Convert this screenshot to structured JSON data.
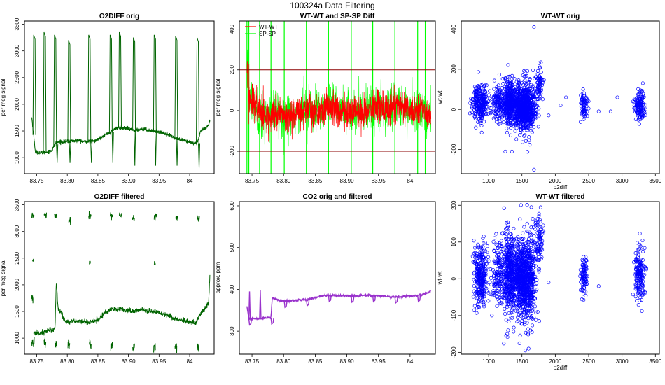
{
  "figure": {
    "title": "100324a   Data Filtering"
  },
  "chart_data": [
    {
      "id": "p1",
      "type": "line",
      "title": "O2DIFF orig",
      "xlabel": "",
      "ylabel": "per meg signal",
      "xlim": [
        83.73,
        84.04
      ],
      "ylim": [
        700,
        3560
      ],
      "xticks": [
        83.75,
        83.8,
        83.85,
        83.9,
        83.95,
        84.0
      ],
      "yticks": [
        1000,
        1500,
        2000,
        2500,
        3000,
        3500
      ],
      "color": "#006400",
      "series": [
        {
          "name": "o2diff",
          "base": [
            [
              83.742,
              1750
            ],
            [
              83.748,
              1100
            ],
            [
              83.76,
              1090
            ],
            [
              83.77,
              1120
            ],
            [
              83.775,
              1140
            ],
            [
              83.781,
              1270
            ],
            [
              83.788,
              1300
            ],
            [
              83.8,
              1300
            ],
            [
              83.815,
              1320
            ],
            [
              83.83,
              1300
            ],
            [
              83.845,
              1310
            ],
            [
              83.85,
              1340
            ],
            [
              83.858,
              1410
            ],
            [
              83.87,
              1470
            ],
            [
              83.88,
              1560
            ],
            [
              83.895,
              1550
            ],
            [
              83.91,
              1510
            ],
            [
              83.925,
              1540
            ],
            [
              83.935,
              1510
            ],
            [
              83.943,
              1500
            ],
            [
              83.952,
              1480
            ],
            [
              83.96,
              1450
            ],
            [
              83.968,
              1420
            ],
            [
              83.976,
              1370
            ],
            [
              83.985,
              1330
            ],
            [
              83.995,
              1300
            ],
            [
              84.005,
              1280
            ],
            [
              84.012,
              1270
            ],
            [
              84.018,
              1500
            ],
            [
              84.025,
              1550
            ],
            [
              84.03,
              1600
            ],
            [
              84.033,
              1680
            ]
          ],
          "spikes_high": [
            [
              83.745,
              3300
            ],
            [
              83.762,
              3350
            ],
            [
              83.779,
              3300
            ],
            [
              83.802,
              3200
            ],
            [
              83.835,
              3300
            ],
            [
              83.87,
              3300
            ],
            [
              83.885,
              3350
            ],
            [
              83.908,
              3250
            ],
            [
              83.942,
              3300
            ],
            [
              83.977,
              3280
            ],
            [
              84.012,
              3250
            ]
          ],
          "spikes_low": [
            [
              83.78,
              900
            ],
            [
              83.801,
              900
            ],
            [
              83.836,
              900
            ],
            [
              83.871,
              900
            ],
            [
              83.907,
              850
            ],
            [
              83.941,
              850
            ],
            [
              83.976,
              850
            ],
            [
              84.012,
              800
            ]
          ]
        }
      ]
    },
    {
      "id": "p2",
      "type": "line",
      "title": "WT-WT and SP-SP Diff",
      "xlabel": "",
      "ylabel": "per meg signal",
      "xlim": [
        83.73,
        84.04
      ],
      "ylim": [
        -310,
        440
      ],
      "xticks": [
        83.75,
        83.8,
        83.85,
        83.9,
        83.95,
        84.0
      ],
      "yticks": [
        -200,
        0,
        200,
        400
      ],
      "hlines": [
        200,
        -200
      ],
      "legend": [
        "WT-WT",
        "SP-SP"
      ],
      "series": [
        {
          "name": "WT-WT",
          "color": "#ff0000",
          "base": [
            [
              83.742,
              200
            ],
            [
              83.745,
              80
            ],
            [
              83.75,
              40
            ],
            [
              83.755,
              30
            ],
            [
              83.76,
              5
            ],
            [
              83.765,
              -20
            ],
            [
              83.77,
              -30
            ],
            [
              83.78,
              -20
            ],
            [
              83.79,
              -5
            ],
            [
              83.8,
              -20
            ],
            [
              83.81,
              -30
            ],
            [
              83.82,
              -15
            ],
            [
              83.83,
              0
            ],
            [
              83.84,
              10
            ],
            [
              83.85,
              -5
            ],
            [
              83.86,
              -10
            ],
            [
              83.865,
              10
            ],
            [
              83.87,
              30
            ],
            [
              83.88,
              20
            ],
            [
              83.89,
              0
            ],
            [
              83.9,
              -10
            ],
            [
              83.91,
              -5
            ],
            [
              83.92,
              -15
            ],
            [
              83.93,
              0
            ],
            [
              83.94,
              10
            ],
            [
              83.95,
              20
            ],
            [
              83.96,
              0
            ],
            [
              83.97,
              10
            ],
            [
              83.98,
              30
            ],
            [
              83.99,
              20
            ],
            [
              84.0,
              0
            ],
            [
              84.01,
              -10
            ],
            [
              84.02,
              0
            ],
            [
              84.028,
              -20
            ],
            [
              84.033,
              -30
            ]
          ],
          "noise": 40
        },
        {
          "name": "SP-SP",
          "color": "#00ff00",
          "spikes": [
            83.742,
            83.745,
            83.762,
            83.78,
            83.801,
            83.836,
            83.871,
            83.907,
            83.941,
            83.976,
            84.012,
            84.024
          ]
        }
      ]
    },
    {
      "id": "p3",
      "type": "scatter",
      "title": "WT-WT orig",
      "xlabel": "o2diff",
      "ylabel": "wt-wt",
      "xlim": [
        590,
        3560
      ],
      "ylim": [
        -320,
        440
      ],
      "xticks": [
        1000,
        1500,
        2000,
        2500,
        3000,
        3500
      ],
      "yticks": [
        -200,
        0,
        200,
        400
      ],
      "color": "#0000ff",
      "clusters": [
        {
          "cx": 880,
          "cy": 30,
          "sx": 60,
          "sy": 45,
          "n": 260
        },
        {
          "cx": 1150,
          "cy": 30,
          "sx": 50,
          "sy": 45,
          "n": 140
        },
        {
          "cx": 1300,
          "cy": 40,
          "sx": 35,
          "sy": 55,
          "n": 260
        },
        {
          "cx": 1480,
          "cy": 10,
          "sx": 100,
          "sy": 55,
          "n": 650
        },
        {
          "cx": 1580,
          "cy": 10,
          "sx": 70,
          "sy": 65,
          "n": 300
        },
        {
          "cx": 1760,
          "cy": 120,
          "sx": 25,
          "sy": 40,
          "n": 70
        },
        {
          "cx": 2430,
          "cy": 20,
          "sx": 25,
          "sy": 35,
          "n": 70
        },
        {
          "cx": 3260,
          "cy": 20,
          "sx": 40,
          "sy": 35,
          "n": 140
        }
      ],
      "outliers": [
        [
          1680,
          410
        ],
        [
          1680,
          -300
        ],
        [
          1250,
          -210
        ],
        [
          1350,
          -210
        ],
        [
          1760,
          230
        ],
        [
          2080,
          20
        ],
        [
          2160,
          60
        ],
        [
          2500,
          40
        ],
        [
          2650,
          -10
        ],
        [
          2830,
          -10
        ],
        [
          2930,
          60
        ],
        [
          1900,
          -30
        ],
        [
          720,
          -20
        ]
      ]
    },
    {
      "id": "p4",
      "type": "line",
      "title": "O2DIFF filtered",
      "xlabel": "",
      "ylabel": "per meg signal",
      "xlim": [
        83.73,
        84.04
      ],
      "ylim": [
        700,
        3560
      ],
      "xticks": [
        83.75,
        83.8,
        83.85,
        83.9,
        83.95,
        84.0
      ],
      "yticks": [
        1000,
        1500,
        2000,
        2500,
        3000,
        3500
      ],
      "color": "#006400",
      "segments": [
        {
          "x": 83.742,
          "y": 3280,
          "len": 0.004,
          "noise": 60
        },
        {
          "x": 83.762,
          "y": 3300,
          "len": 0.004,
          "noise": 60
        },
        {
          "x": 83.779,
          "y": 3300,
          "len": 0.004,
          "noise": 60
        },
        {
          "x": 83.802,
          "y": 3200,
          "len": 0.004,
          "noise": 60
        },
        {
          "x": 83.835,
          "y": 3300,
          "len": 0.004,
          "noise": 60
        },
        {
          "x": 83.87,
          "y": 3300,
          "len": 0.004,
          "noise": 60
        },
        {
          "x": 83.885,
          "y": 3320,
          "len": 0.004,
          "noise": 60
        },
        {
          "x": 83.906,
          "y": 3250,
          "len": 0.004,
          "noise": 60
        },
        {
          "x": 83.942,
          "y": 3300,
          "len": 0.004,
          "noise": 60
        },
        {
          "x": 83.977,
          "y": 3260,
          "len": 0.004,
          "noise": 60
        },
        {
          "x": 84.012,
          "y": 3230,
          "len": 0.004,
          "noise": 60
        },
        {
          "x": 83.743,
          "y": 2450,
          "len": 0.002,
          "noise": 30
        },
        {
          "x": 83.836,
          "y": 2420,
          "len": 0.002,
          "noise": 30
        },
        {
          "x": 83.942,
          "y": 2400,
          "len": 0.002,
          "noise": 30
        },
        {
          "x": 83.742,
          "y": 1750,
          "len": 0.002,
          "noise": 80
        },
        {
          "x": 83.742,
          "y": 900,
          "len": 0.004,
          "noise": 80
        },
        {
          "x": 83.762,
          "y": 900,
          "len": 0.003,
          "noise": 80
        },
        {
          "x": 83.78,
          "y": 880,
          "len": 0.003,
          "noise": 80
        },
        {
          "x": 83.801,
          "y": 860,
          "len": 0.003,
          "noise": 80
        },
        {
          "x": 83.836,
          "y": 880,
          "len": 0.003,
          "noise": 80
        },
        {
          "x": 83.871,
          "y": 860,
          "len": 0.003,
          "noise": 80
        },
        {
          "x": 83.907,
          "y": 840,
          "len": 0.003,
          "noise": 80
        },
        {
          "x": 83.941,
          "y": 840,
          "len": 0.003,
          "noise": 80
        },
        {
          "x": 83.976,
          "y": 820,
          "len": 0.003,
          "noise": 80
        },
        {
          "x": 84.012,
          "y": 820,
          "len": 0.003,
          "noise": 80
        }
      ],
      "base": [
        [
          83.745,
          1100
        ],
        [
          83.755,
          1090
        ],
        [
          83.765,
          1130
        ],
        [
          83.775,
          1150
        ],
        [
          83.78,
          1200
        ],
        [
          83.782,
          2050
        ],
        [
          83.785,
          1550
        ],
        [
          83.79,
          1480
        ],
        [
          83.795,
          1350
        ],
        [
          83.8,
          1300
        ],
        [
          83.815,
          1320
        ],
        [
          83.83,
          1300
        ],
        [
          83.845,
          1320
        ],
        [
          83.855,
          1400
        ],
        [
          83.865,
          1500
        ],
        [
          83.875,
          1560
        ],
        [
          83.89,
          1530
        ],
        [
          83.905,
          1510
        ],
        [
          83.92,
          1530
        ],
        [
          83.935,
          1510
        ],
        [
          83.95,
          1480
        ],
        [
          83.965,
          1430
        ],
        [
          83.98,
          1350
        ],
        [
          83.995,
          1310
        ],
        [
          84.01,
          1270
        ],
        [
          84.018,
          1480
        ],
        [
          84.026,
          1560
        ],
        [
          84.031,
          1650
        ],
        [
          84.033,
          2150
        ]
      ],
      "base_noise": 45
    },
    {
      "id": "p5",
      "type": "line",
      "title": "CO2 orig and filtered",
      "xlabel": "",
      "ylabel": "approx. ppm",
      "xlim": [
        83.73,
        84.04
      ],
      "ylim": [
        245,
        610
      ],
      "xticks": [
        83.75,
        83.8,
        83.85,
        83.9,
        83.95,
        84.0
      ],
      "yticks": [
        300,
        400,
        500,
        600
      ],
      "color": "#9932cc",
      "base": [
        [
          83.742,
          360
        ],
        [
          83.745,
          330
        ],
        [
          83.76,
          330
        ],
        [
          83.775,
          332
        ],
        [
          83.78,
          332
        ],
        [
          83.782,
          380
        ],
        [
          83.79,
          375
        ],
        [
          83.8,
          372
        ],
        [
          83.82,
          374
        ],
        [
          83.84,
          376
        ],
        [
          83.855,
          382
        ],
        [
          83.87,
          386
        ],
        [
          83.89,
          385
        ],
        [
          83.91,
          384
        ],
        [
          83.93,
          386
        ],
        [
          83.95,
          385
        ],
        [
          83.97,
          382
        ],
        [
          83.99,
          383
        ],
        [
          84.01,
          385
        ],
        [
          84.02,
          388
        ],
        [
          84.03,
          393
        ],
        [
          84.033,
          397
        ]
      ],
      "dips": [
        83.745,
        83.78,
        83.801,
        83.836,
        83.871,
        83.907,
        83.941,
        83.976,
        84.012
      ],
      "peaks": [
        [
          83.745,
          395
        ],
        [
          83.762,
          398
        ]
      ]
    },
    {
      "id": "p6",
      "type": "scatter",
      "title": "WT-WT filtered",
      "xlabel": "o2diff",
      "ylabel": "wt-wt",
      "xlim": [
        590,
        3560
      ],
      "ylim": [
        -205,
        210
      ],
      "xticks": [
        1000,
        1500,
        2000,
        2500,
        3000,
        3500
      ],
      "yticks": [
        -200,
        -100,
        0,
        100,
        200
      ],
      "color": "#0000ff",
      "clusters": [
        {
          "cx": 880,
          "cy": 10,
          "sx": 50,
          "sy": 45,
          "n": 300
        },
        {
          "cx": 1150,
          "cy": 10,
          "sx": 50,
          "sy": 45,
          "n": 160
        },
        {
          "cx": 1300,
          "cy": 20,
          "sx": 40,
          "sy": 55,
          "n": 300
        },
        {
          "cx": 1480,
          "cy": 0,
          "sx": 100,
          "sy": 50,
          "n": 750
        },
        {
          "cx": 1600,
          "cy": 10,
          "sx": 60,
          "sy": 60,
          "n": 320
        },
        {
          "cx": 1760,
          "cy": 110,
          "sx": 30,
          "sy": 35,
          "n": 80
        },
        {
          "cx": 2430,
          "cy": 10,
          "sx": 25,
          "sy": 30,
          "n": 90
        },
        {
          "cx": 3260,
          "cy": 10,
          "sx": 40,
          "sy": 35,
          "n": 170
        }
      ],
      "outliers": [
        [
          1550,
          -195
        ],
        [
          1640,
          195
        ],
        [
          1600,
          -190
        ],
        [
          1280,
          -150
        ],
        [
          1900,
          -10
        ],
        [
          2650,
          -20
        ],
        [
          1050,
          -100
        ]
      ]
    }
  ]
}
